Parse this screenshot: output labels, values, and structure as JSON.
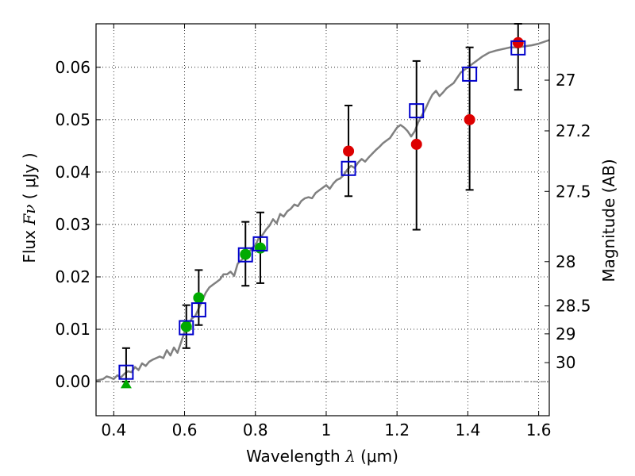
{
  "chart_data": {
    "type": "scatter",
    "xlabel": {
      "prefix": "Wavelength  ",
      "symbol": "λ",
      "suffix": " (μm)"
    },
    "ylabel": {
      "prefix": "Flux  ",
      "symbol": "Fν",
      "suffix": "  ( μJy )"
    },
    "y2label": "Magnitude (AB)",
    "xlim": [
      0.35,
      1.63
    ],
    "ylim": [
      -0.0065,
      0.0683
    ],
    "grid": true,
    "x_ticks": [
      {
        "value": 0.4,
        "label": "0.4"
      },
      {
        "value": 0.6,
        "label": "0.6"
      },
      {
        "value": 0.8,
        "label": "0.8"
      },
      {
        "value": 1.0,
        "label": "1"
      },
      {
        "value": 1.2,
        "label": "1.2"
      },
      {
        "value": 1.4,
        "label": "1.4"
      },
      {
        "value": 1.6,
        "label": "1.6"
      }
    ],
    "y_ticks": [
      {
        "value": 0.0,
        "label": "0.00"
      },
      {
        "value": 0.01,
        "label": "0.01"
      },
      {
        "value": 0.02,
        "label": "0.02"
      },
      {
        "value": 0.03,
        "label": "0.03"
      },
      {
        "value": 0.04,
        "label": "0.04"
      },
      {
        "value": 0.05,
        "label": "0.05"
      },
      {
        "value": 0.06,
        "label": "0.06"
      }
    ],
    "y2_ticks": [
      {
        "value": 27,
        "label": "27"
      },
      {
        "value": 27.2,
        "label": "27.2"
      },
      {
        "value": 27.5,
        "label": "27.5"
      },
      {
        "value": 28,
        "label": "28"
      },
      {
        "value": 28.5,
        "label": "28.5"
      },
      {
        "value": 29,
        "label": "29"
      },
      {
        "value": 30,
        "label": "30"
      }
    ],
    "model_spectrum": {
      "color": "#808080",
      "x": [
        0.35,
        0.37,
        0.38,
        0.39,
        0.4,
        0.41,
        0.42,
        0.43,
        0.44,
        0.45,
        0.46,
        0.47,
        0.48,
        0.49,
        0.5,
        0.51,
        0.52,
        0.53,
        0.54,
        0.55,
        0.56,
        0.57,
        0.58,
        0.59,
        0.6,
        0.61,
        0.62,
        0.63,
        0.64,
        0.65,
        0.66,
        0.67,
        0.68,
        0.69,
        0.7,
        0.71,
        0.72,
        0.73,
        0.74,
        0.75,
        0.76,
        0.77,
        0.78,
        0.79,
        0.8,
        0.81,
        0.82,
        0.83,
        0.84,
        0.85,
        0.86,
        0.87,
        0.88,
        0.89,
        0.9,
        0.91,
        0.92,
        0.93,
        0.94,
        0.95,
        0.96,
        0.97,
        0.98,
        0.99,
        1.0,
        1.01,
        1.02,
        1.03,
        1.04,
        1.05,
        1.06,
        1.07,
        1.08,
        1.09,
        1.1,
        1.11,
        1.12,
        1.13,
        1.14,
        1.15,
        1.16,
        1.17,
        1.18,
        1.19,
        1.2,
        1.21,
        1.22,
        1.23,
        1.24,
        1.25,
        1.26,
        1.27,
        1.28,
        1.29,
        1.3,
        1.31,
        1.32,
        1.33,
        1.34,
        1.35,
        1.36,
        1.37,
        1.38,
        1.39,
        1.4,
        1.42,
        1.44,
        1.46,
        1.48,
        1.5,
        1.52,
        1.54,
        1.56,
        1.58,
        1.6,
        1.63
      ],
      "y": [
        0.0002,
        0.0005,
        0.001,
        0.0008,
        0.0005,
        0.0012,
        0.0008,
        0.0015,
        0.002,
        0.0018,
        0.0028,
        0.0022,
        0.0035,
        0.003,
        0.0038,
        0.0042,
        0.0045,
        0.0048,
        0.0045,
        0.006,
        0.005,
        0.0065,
        0.0055,
        0.0075,
        0.0095,
        0.0105,
        0.012,
        0.0125,
        0.014,
        0.0155,
        0.017,
        0.018,
        0.0185,
        0.019,
        0.0195,
        0.0205,
        0.0205,
        0.021,
        0.0202,
        0.0225,
        0.0232,
        0.0238,
        0.0245,
        0.0255,
        0.026,
        0.0275,
        0.028,
        0.029,
        0.0298,
        0.031,
        0.0302,
        0.032,
        0.0315,
        0.0325,
        0.033,
        0.0338,
        0.0335,
        0.0345,
        0.035,
        0.0352,
        0.035,
        0.036,
        0.0365,
        0.037,
        0.0375,
        0.0368,
        0.0378,
        0.0385,
        0.0388,
        0.0395,
        0.0405,
        0.0412,
        0.0408,
        0.0418,
        0.0425,
        0.042,
        0.0428,
        0.0435,
        0.0442,
        0.0448,
        0.0455,
        0.046,
        0.0465,
        0.0475,
        0.0485,
        0.049,
        0.0485,
        0.0478,
        0.0468,
        0.0478,
        0.0495,
        0.0508,
        0.052,
        0.0535,
        0.0548,
        0.0555,
        0.0545,
        0.0552,
        0.056,
        0.0565,
        0.057,
        0.058,
        0.059,
        0.0595,
        0.06,
        0.061,
        0.062,
        0.0628,
        0.0632,
        0.0635,
        0.0638,
        0.0638,
        0.064,
        0.0642,
        0.0645,
        0.0652
      ]
    },
    "series": [
      {
        "marker": "open-square",
        "color": "#0000cc",
        "x": [
          0.435,
          0.605,
          0.64,
          0.772,
          0.814,
          1.063,
          1.255,
          1.405,
          1.542
        ],
        "y": [
          0.0018,
          0.0103,
          0.0137,
          0.0242,
          0.0263,
          0.0407,
          0.0517,
          0.0587,
          0.0637
        ]
      },
      {
        "marker": "filled-circle",
        "color": "#00aa00",
        "x": [
          0.605,
          0.64,
          0.772,
          0.814
        ],
        "y": [
          0.0105,
          0.016,
          0.0243,
          0.0255
        ],
        "yerr_lo": [
          0.0064,
          0.0108,
          0.0183,
          0.0188
        ],
        "yerr_hi": [
          0.0146,
          0.0213,
          0.0305,
          0.0323
        ]
      },
      {
        "marker": "filled-circle",
        "color": "#dd0000",
        "x": [
          1.063,
          1.255,
          1.405,
          1.542
        ],
        "y": [
          0.044,
          0.0453,
          0.05,
          0.0647
        ],
        "yerr_lo": [
          0.0354,
          0.029,
          0.0366,
          0.0557
        ],
        "yerr_hi": [
          0.0527,
          0.0612,
          0.0638,
          0.0683
        ]
      },
      {
        "marker": "filled-triangle",
        "color": "#00aa00",
        "x": [
          0.435
        ],
        "y": [
          -0.0005
        ],
        "yerr_lo": [
          0.0
        ],
        "yerr_hi": [
          0.0064
        ]
      }
    ]
  }
}
